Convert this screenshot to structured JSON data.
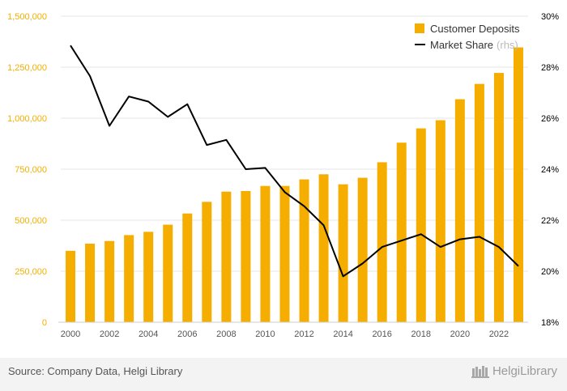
{
  "chart_data": {
    "type": "bar+line",
    "title": "",
    "categories": [
      "2000",
      "2001",
      "2002",
      "2003",
      "2004",
      "2005",
      "2006",
      "2007",
      "2008",
      "2009",
      "2010",
      "2011",
      "2012",
      "2013",
      "2014",
      "2015",
      "2016",
      "2017",
      "2018",
      "2019",
      "2020",
      "2021",
      "2022",
      "2023"
    ],
    "x_tick_labels": [
      "2000",
      "2002",
      "2004",
      "2006",
      "2008",
      "2010",
      "2012",
      "2014",
      "2016",
      "2018",
      "2020",
      "2022"
    ],
    "series": [
      {
        "name": "Customer Deposits",
        "type": "bar",
        "axis": "left",
        "color": "#f5ae00",
        "values": [
          350000,
          385000,
          398000,
          427000,
          443000,
          478000,
          533000,
          590000,
          640000,
          643000,
          668000,
          668000,
          700000,
          725000,
          676000,
          708000,
          784000,
          880000,
          950000,
          990000,
          1093000,
          1168000,
          1222000,
          1347000
        ]
      },
      {
        "name": "Market Share",
        "suffix": "(rhs)",
        "type": "line",
        "axis": "right",
        "color": "#000000",
        "values": [
          28.85,
          27.65,
          25.7,
          26.85,
          26.65,
          26.05,
          26.55,
          24.95,
          25.15,
          24.0,
          24.05,
          23.1,
          22.55,
          21.8,
          19.8,
          20.3,
          20.95,
          21.2,
          21.45,
          20.95,
          21.25,
          21.35,
          20.95,
          20.2
        ]
      }
    ],
    "y_left": {
      "min": 0,
      "max": 1500000,
      "ticks": [
        0,
        250000,
        500000,
        750000,
        1000000,
        1250000,
        1500000
      ],
      "tick_labels": [
        "0",
        "250,000",
        "500,000",
        "750,000",
        "1,000,000",
        "1,250,000",
        "1,500,000"
      ]
    },
    "y_right": {
      "min": 18,
      "max": 30,
      "ticks": [
        18,
        20,
        22,
        24,
        26,
        28,
        30
      ],
      "tick_labels": [
        "18%",
        "20%",
        "22%",
        "24%",
        "26%",
        "28%",
        "30%"
      ]
    },
    "legend_position": "top-right",
    "grid": true,
    "colors": {
      "left_axis_text": "#f5ae00",
      "right_axis_text": "#000000",
      "grid": "#e6e6e6"
    }
  },
  "footer": {
    "source": "Source: Company Data, Helgi Library",
    "brand": "HelgiLibrary"
  }
}
